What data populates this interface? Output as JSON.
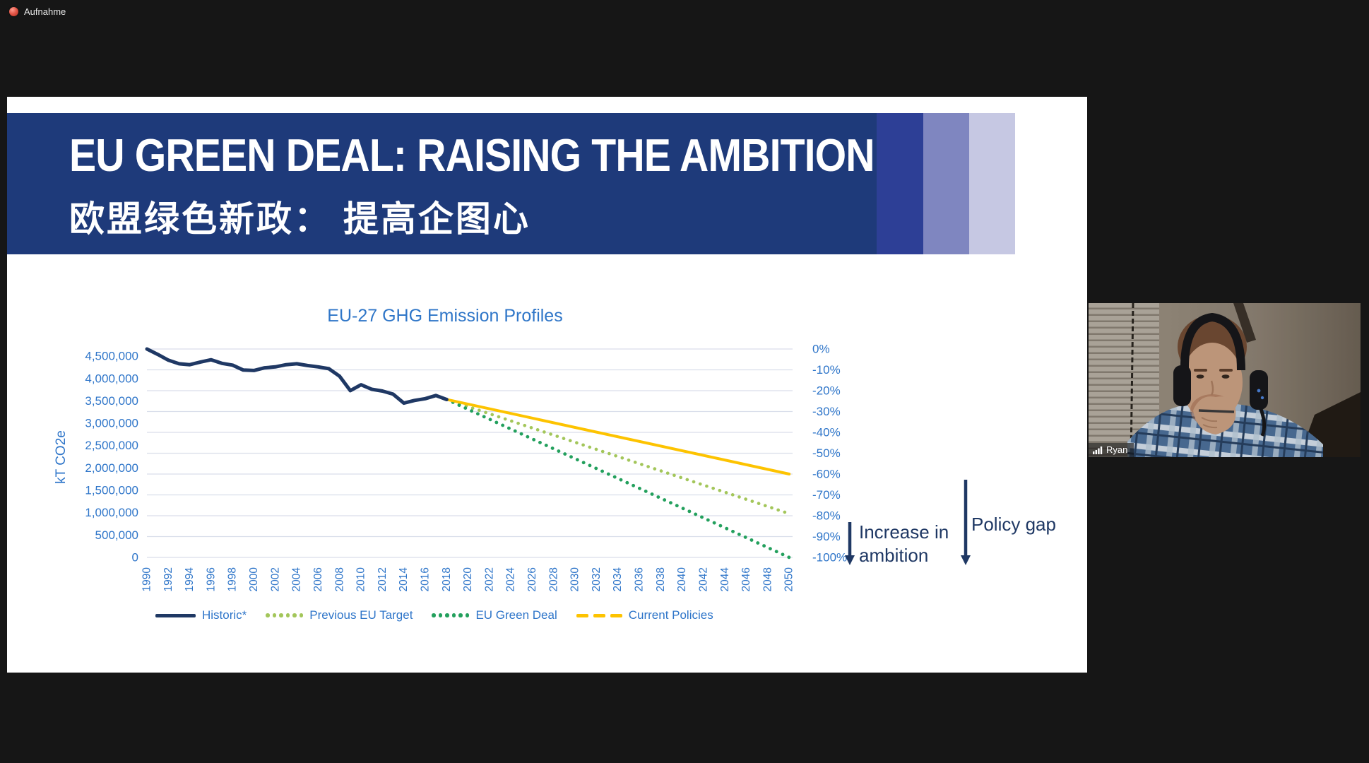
{
  "meeting": {
    "recording_label": "Aufnahme",
    "participant_name": "Ryan"
  },
  "slide": {
    "title": "EU GREEN DEAL: RAISING THE AMBITION",
    "subtitle_zh": "欧盟绿色新政： 提高企图心"
  },
  "annotations": {
    "increase_line1": "Increase in",
    "increase_line2": "ambition",
    "policy_gap": "Policy gap"
  },
  "colors": {
    "banner_dark_blue": "#1e3a7a",
    "banner_band1": "#2d3f96",
    "banner_band2": "#7f86c0",
    "banner_band3": "#c6c8e3",
    "axis_text_blue": "#2e75c9",
    "historic_navy": "#1f3864",
    "previous_target_green": "#a3c65a",
    "green_deal_green": "#23a05d",
    "current_policies_yellow": "#fdc300",
    "gridline": "#d9deea"
  },
  "chart_data": {
    "type": "line",
    "title": "EU-27 GHG Emission Profiles",
    "ylabel_left": "kT CO2e",
    "baseline_kt": 4660000,
    "x_range": [
      1990,
      2050
    ],
    "grid": true,
    "legend_position": "bottom",
    "left_ticks": [
      "4,500,000",
      "4,000,000",
      "3,500,000",
      "3,000,000",
      "2,500,000",
      "2,000,000",
      "1,500,000",
      "1,000,000",
      "500,000",
      "0"
    ],
    "right_ticks": [
      "0%",
      "-10%",
      "-20%",
      "-30%",
      "-40%",
      "-50%",
      "-60%",
      "-70%",
      "-80%",
      "-90%",
      "-100%"
    ],
    "x_ticks": [
      1990,
      1992,
      1994,
      1996,
      1998,
      2000,
      2002,
      2004,
      2006,
      2008,
      2010,
      2012,
      2014,
      2016,
      2018,
      2020,
      2022,
      2024,
      2026,
      2028,
      2030,
      2032,
      2034,
      2036,
      2038,
      2040,
      2042,
      2044,
      2046,
      2048,
      2050
    ],
    "series": [
      {
        "name": "Historic*",
        "color": "#1f3864",
        "legend_marker": "line",
        "plot_style": "solid",
        "width": 5,
        "x": [
          1990,
          1991,
          1992,
          1993,
          1994,
          1995,
          1996,
          1997,
          1998,
          1999,
          2000,
          2001,
          2002,
          2003,
          2004,
          2005,
          2006,
          2007,
          2008,
          2009,
          2010,
          2011,
          2012,
          2013,
          2014,
          2015,
          2016,
          2017,
          2018
        ],
        "values_kt": [
          4660000,
          4540000,
          4410000,
          4330000,
          4310000,
          4370000,
          4420000,
          4340000,
          4300000,
          4190000,
          4180000,
          4240000,
          4260000,
          4310000,
          4330000,
          4290000,
          4260000,
          4220000,
          4050000,
          3730000,
          3860000,
          3760000,
          3720000,
          3650000,
          3450000,
          3510000,
          3550000,
          3620000,
          3530000
        ]
      },
      {
        "name": "Previous EU Target",
        "color": "#a3c65a",
        "legend_marker": "dots",
        "plot_style": "dotted",
        "width": 4.6,
        "x": [
          2018,
          2050
        ],
        "values_pct": [
          -24.2,
          -79
        ]
      },
      {
        "name": "EU Green Deal",
        "color": "#23a05d",
        "legend_marker": "dots",
        "plot_style": "dotted",
        "width": 4.8,
        "x": [
          2018,
          2050
        ],
        "values_pct": [
          -24.2,
          -100
        ]
      },
      {
        "name": "Current Policies",
        "color": "#fdc300",
        "legend_marker": "dashes",
        "plot_style": "solid",
        "width": 4,
        "x": [
          2018,
          2050
        ],
        "values_pct": [
          -24.2,
          -60
        ]
      }
    ]
  }
}
